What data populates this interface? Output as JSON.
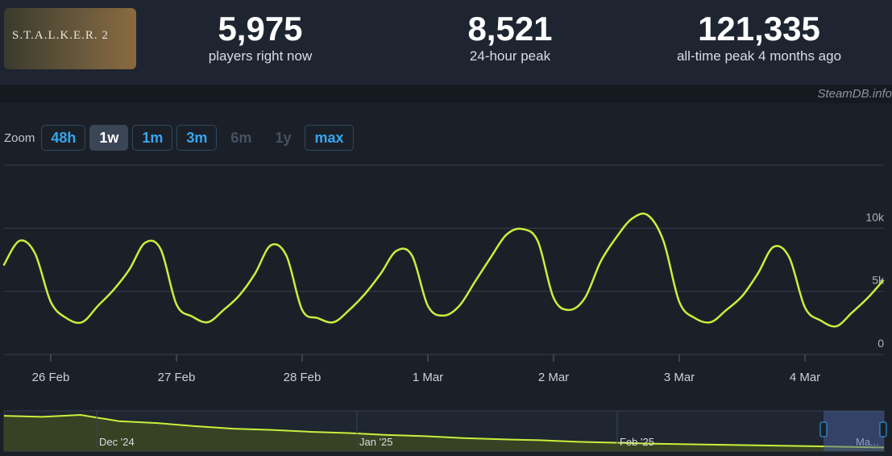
{
  "header": {
    "game_logo": "S.T.A.L.K.E.R. 2",
    "stats": [
      {
        "value": "5,975",
        "label": "players right now"
      },
      {
        "value": "8,521",
        "label": "24-hour peak"
      },
      {
        "value": "121,335",
        "label": "all-time peak 4 months ago"
      }
    ]
  },
  "watermark": "SteamDB.info",
  "zoom": {
    "label": "Zoom",
    "buttons": [
      "48h",
      "1w",
      "1m",
      "3m",
      "6m",
      "1y",
      "max"
    ],
    "active": 1,
    "disabled": [
      4,
      5
    ]
  },
  "chart_data": {
    "type": "line",
    "color": "#c8f03c",
    "grid": true,
    "categories": [
      null,
      null,
      null,
      "26 Feb",
      null,
      null,
      null,
      null,
      null,
      null,
      null,
      "27 Feb",
      null,
      null,
      null,
      null,
      null,
      null,
      null,
      "28 Feb",
      null,
      null,
      null,
      null,
      null,
      null,
      null,
      "1 Mar",
      null,
      null,
      null,
      null,
      null,
      null,
      null,
      "2 Mar",
      null,
      null,
      null,
      null,
      null,
      null,
      null,
      "3 Mar",
      null,
      null,
      null,
      null,
      null,
      null,
      null,
      "4 Mar",
      null,
      null,
      null,
      null,
      null
    ],
    "values": [
      7050,
      9000,
      8000,
      4170,
      2880,
      2560,
      3850,
      5130,
      6730,
      8850,
      8330,
      3970,
      3010,
      2560,
      3530,
      4680,
      6410,
      8650,
      7820,
      3530,
      2880,
      2560,
      3530,
      4810,
      6410,
      8210,
      7820,
      3850,
      3080,
      3850,
      5770,
      7690,
      9490,
      9940,
      8970,
      4490,
      3530,
      4490,
      7370,
      9290,
      10770,
      11030,
      8970,
      4170,
      2880,
      2560,
      3530,
      4620,
      6410,
      8530,
      7690,
      3720,
      2690,
      2240,
      3330,
      4490,
      5900
    ],
    "ylim": [
      0,
      15000
    ],
    "yticks": [
      0,
      {
        "value": 5000,
        "label": "5k"
      },
      {
        "value": 10000,
        "label": "10k"
      }
    ]
  },
  "navigator": {
    "labels": [
      "Dec '24",
      "Jan '25",
      "Feb '25",
      "Ma..."
    ],
    "values": [
      113000,
      110000,
      116000,
      96000,
      90000,
      80000,
      72000,
      68000,
      62000,
      58000,
      52000,
      48000,
      42000,
      38000,
      35000,
      30000,
      27000,
      24000,
      22000,
      20000,
      18000,
      16000,
      14000,
      12000
    ]
  }
}
